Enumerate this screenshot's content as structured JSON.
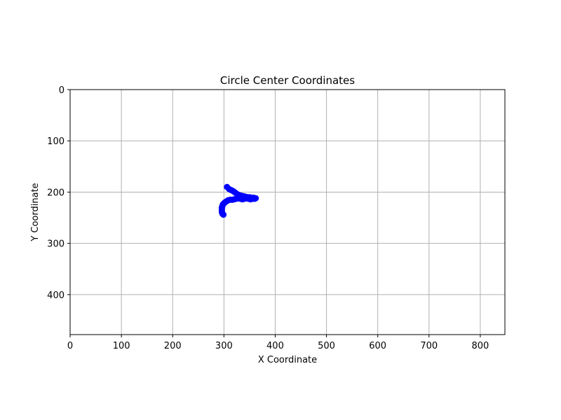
{
  "chart_data": {
    "type": "scatter",
    "title": "Circle Center Coordinates",
    "xlabel": "X Coordinate",
    "ylabel": "Y Coordinate",
    "xlim": [
      0,
      848
    ],
    "ylim": [
      478,
      0
    ],
    "y_inverted": true,
    "grid": true,
    "x_ticks": [
      "0",
      "100",
      "200",
      "300",
      "400",
      "500",
      "600",
      "700",
      "800"
    ],
    "y_ticks": [
      "0",
      "100",
      "200",
      "300",
      "400"
    ],
    "point_color": "#0000ff",
    "points": [
      {
        "x": 306,
        "y": 190
      },
      {
        "x": 310,
        "y": 194
      },
      {
        "x": 314,
        "y": 196
      },
      {
        "x": 318,
        "y": 198
      },
      {
        "x": 322,
        "y": 201
      },
      {
        "x": 326,
        "y": 204
      },
      {
        "x": 330,
        "y": 206
      },
      {
        "x": 334,
        "y": 207
      },
      {
        "x": 338,
        "y": 208
      },
      {
        "x": 342,
        "y": 209
      },
      {
        "x": 346,
        "y": 210
      },
      {
        "x": 350,
        "y": 210
      },
      {
        "x": 354,
        "y": 211
      },
      {
        "x": 358,
        "y": 211
      },
      {
        "x": 362,
        "y": 212
      },
      {
        "x": 360,
        "y": 213
      },
      {
        "x": 356,
        "y": 213
      },
      {
        "x": 352,
        "y": 214
      },
      {
        "x": 348,
        "y": 213
      },
      {
        "x": 344,
        "y": 212
      },
      {
        "x": 340,
        "y": 213
      },
      {
        "x": 336,
        "y": 214
      },
      {
        "x": 332,
        "y": 213
      },
      {
        "x": 328,
        "y": 212
      },
      {
        "x": 324,
        "y": 213
      },
      {
        "x": 320,
        "y": 214
      },
      {
        "x": 316,
        "y": 215
      },
      {
        "x": 312,
        "y": 215
      },
      {
        "x": 308,
        "y": 216
      },
      {
        "x": 305,
        "y": 218
      },
      {
        "x": 302,
        "y": 220
      },
      {
        "x": 300,
        "y": 222
      },
      {
        "x": 298,
        "y": 224
      },
      {
        "x": 297,
        "y": 227
      },
      {
        "x": 296,
        "y": 230
      },
      {
        "x": 296,
        "y": 233
      },
      {
        "x": 296,
        "y": 236
      },
      {
        "x": 296,
        "y": 239
      },
      {
        "x": 297,
        "y": 242
      },
      {
        "x": 299,
        "y": 244
      }
    ]
  }
}
